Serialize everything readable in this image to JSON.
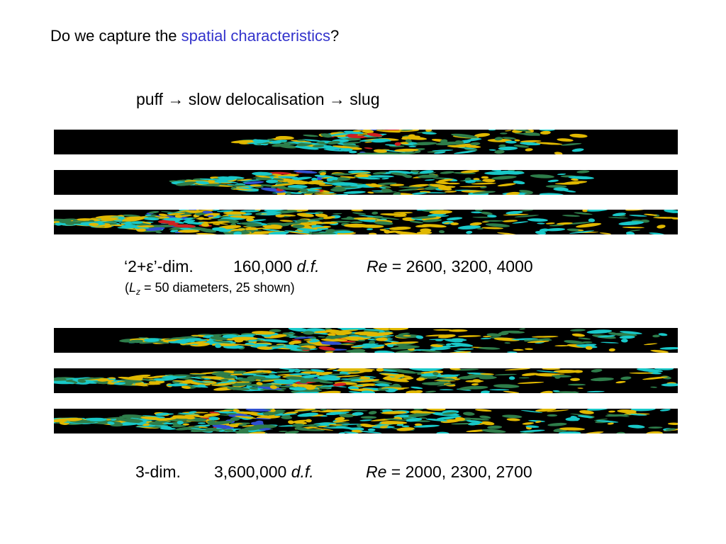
{
  "question": {
    "prefix": "Do we capture the ",
    "highlight": "spatial characteristics",
    "suffix": "?",
    "highlight_color": "#3333cc"
  },
  "sequence": {
    "puff": "puff",
    "arrow": "→",
    "middle": "slow delocalisation",
    "slug": "slug"
  },
  "set_2d": {
    "dim": "‘2+ε’-dim.",
    "dof_value": "160,000",
    "dof_unit": "d.f.",
    "re_label": "Re",
    "re_values": " = 2600, 3200, 4000",
    "note_open": "(",
    "note_symbol": "L",
    "note_sub": "z",
    "note_rest": " = 50 diameters, 25 shown)"
  },
  "set_3d": {
    "dim": "3-dim.",
    "dof_value": "3,600,000",
    "dof_unit": "d.f.",
    "re_label": "Re",
    "re_values": " = 2000, 2300, 2700"
  },
  "strips": [
    {
      "group": "2d",
      "start": 0.3,
      "end": 0.85,
      "peak": 0.5,
      "density": 0.6
    },
    {
      "group": "2d",
      "start": 0.2,
      "end": 0.85,
      "peak": 0.38,
      "density": 0.75
    },
    {
      "group": "2d",
      "start": 0.0,
      "end": 1.0,
      "peak": 0.2,
      "density": 0.95
    },
    {
      "group": "3d",
      "start": 0.12,
      "end": 1.0,
      "peak": 0.42,
      "density": 0.7
    },
    {
      "group": "3d",
      "start": 0.0,
      "end": 1.0,
      "peak": 0.4,
      "density": 0.85
    },
    {
      "group": "3d",
      "start": 0.0,
      "end": 1.0,
      "peak": 0.3,
      "density": 0.95
    }
  ],
  "colors": {
    "background": "#000000",
    "cyan": "#19c8c8",
    "yellow": "#e0b800",
    "green": "#2e7d4a",
    "red": "#d02020",
    "blue": "#3050d0"
  }
}
